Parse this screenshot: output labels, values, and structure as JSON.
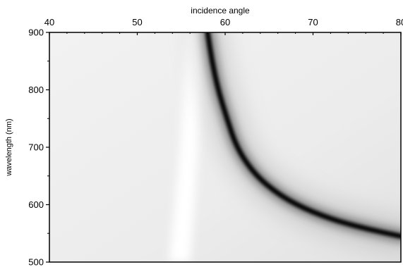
{
  "chart_data": {
    "type": "heatmap",
    "title": "",
    "xlabel": "incidence angle",
    "ylabel": "wavelength (nm)",
    "x_axis_position": "top",
    "xlim": [
      40,
      80
    ],
    "ylim": [
      500,
      900
    ],
    "x_ticks": [
      {
        "value": 40,
        "label": "40"
      },
      {
        "value": 50,
        "label": "50"
      },
      {
        "value": 60,
        "label": "60"
      },
      {
        "value": 70,
        "label": "70"
      },
      {
        "value": 80,
        "label": "80"
      }
    ],
    "y_ticks": [
      {
        "value": 500,
        "label": "500"
      },
      {
        "value": 600,
        "label": "600"
      },
      {
        "value": 700,
        "label": "700"
      },
      {
        "value": 800,
        "label": "800"
      },
      {
        "value": 900,
        "label": "900"
      }
    ],
    "grid": false,
    "colormap": "grayscale",
    "colors": {
      "low": "#000000",
      "high": "#ffffff",
      "background": "#f0f0f0"
    },
    "features": {
      "bright_band": {
        "description_key": "high reflectance band",
        "points": [
          {
            "x": 56.6,
            "y": 900
          },
          {
            "x": 56.3,
            "y": 800
          },
          {
            "x": 55.9,
            "y": 700
          },
          {
            "x": 55.4,
            "y": 600
          },
          {
            "x": 54.8,
            "y": 500
          }
        ]
      },
      "dark_minimum_curve": {
        "points": [
          {
            "x": 58.0,
            "y": 900
          },
          {
            "x": 58.5,
            "y": 850
          },
          {
            "x": 59.2,
            "y": 800
          },
          {
            "x": 60.2,
            "y": 750
          },
          {
            "x": 61.3,
            "y": 700
          },
          {
            "x": 63.0,
            "y": 660
          },
          {
            "x": 65.0,
            "y": 630
          },
          {
            "x": 68.0,
            "y": 600
          },
          {
            "x": 72.0,
            "y": 575
          },
          {
            "x": 76.0,
            "y": 558
          },
          {
            "x": 80.0,
            "y": 545
          }
        ]
      }
    }
  }
}
